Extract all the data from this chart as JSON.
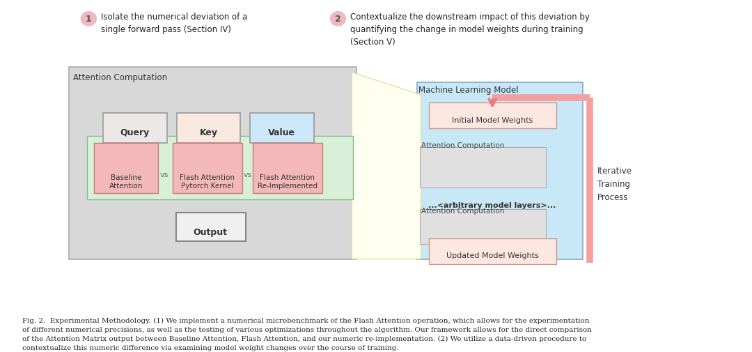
{
  "fig_width": 10.8,
  "fig_height": 5.06,
  "bg_color": "#ffffff",
  "step1_circle_color": "#f0b8c0",
  "step2_circle_color": "#f0b8c0",
  "step1_text": "Isolate the numerical deviation of a\nsingle forward pass (Section IV)",
  "step2_text": "Contextualize the downstream impact of this deviation by\nquantifying the change in model weights during training\n(Section V)",
  "attn_comp_label": "Attention Computation",
  "ml_model_label": "Machine Learning Model",
  "iterative_label": "Iterative\nTraining\nProcess",
  "query_text": "Query",
  "key_text": "Key",
  "value_text": "Value",
  "output_text": "Output",
  "baseline_text": "Baseline\nAttention",
  "flash_pytorch_text": "Flash Attention\nPytorch Kernel",
  "flash_reimpl_text": "Flash Attention\nRe-Implemented",
  "vs_text": "vs",
  "initial_weights_text": "Initial Model Weights",
  "arb_layers_text": "...<arbitrary model layers>...",
  "attn_comp2_text": "Attention Computation",
  "updated_weights_text": "Updated Model Weights",
  "fig_caption": "Fig. 2.  Experimental Methodology. (1) We implement a numerical microbenchmark of the Flash Attention operation, which allows for the experimentation\nof different numerical precisions, as well as the testing of various optimizations throughout the algorithm. Our framework allows for the direct comparison\nof the Attention Matrix output between Baseline Attention, Flash Attention, and our numeric re-implementation. (2) We utilize a data-driven procedure to\ncontextualize this numeric difference via examining model weight changes over the course of training.",
  "outer_left_box_color": "#d8d8d8",
  "green_inner_box_color": "#d8f0d8",
  "query_box_color": "#ede8e8",
  "key_box_color": "#f8e8e0",
  "value_box_color": "#cce8f8",
  "pink_box_color": "#f4b8b8",
  "output_box_color": "#f0f0f0",
  "yellow_bg_color": "#fffff0",
  "ml_outer_box_color": "#c8e8f8",
  "initial_weights_box_color": "#fce8e0",
  "gray_inner_box_color": "#e0e0e0",
  "pink_loop_color": "#f4a0a0",
  "arrow_color": "#f07878",
  "green_border_color": "#88bb88",
  "pink_border_color": "#cc7777",
  "ml_border_color": "#88aacc",
  "salmon_border_color": "#cc9988"
}
